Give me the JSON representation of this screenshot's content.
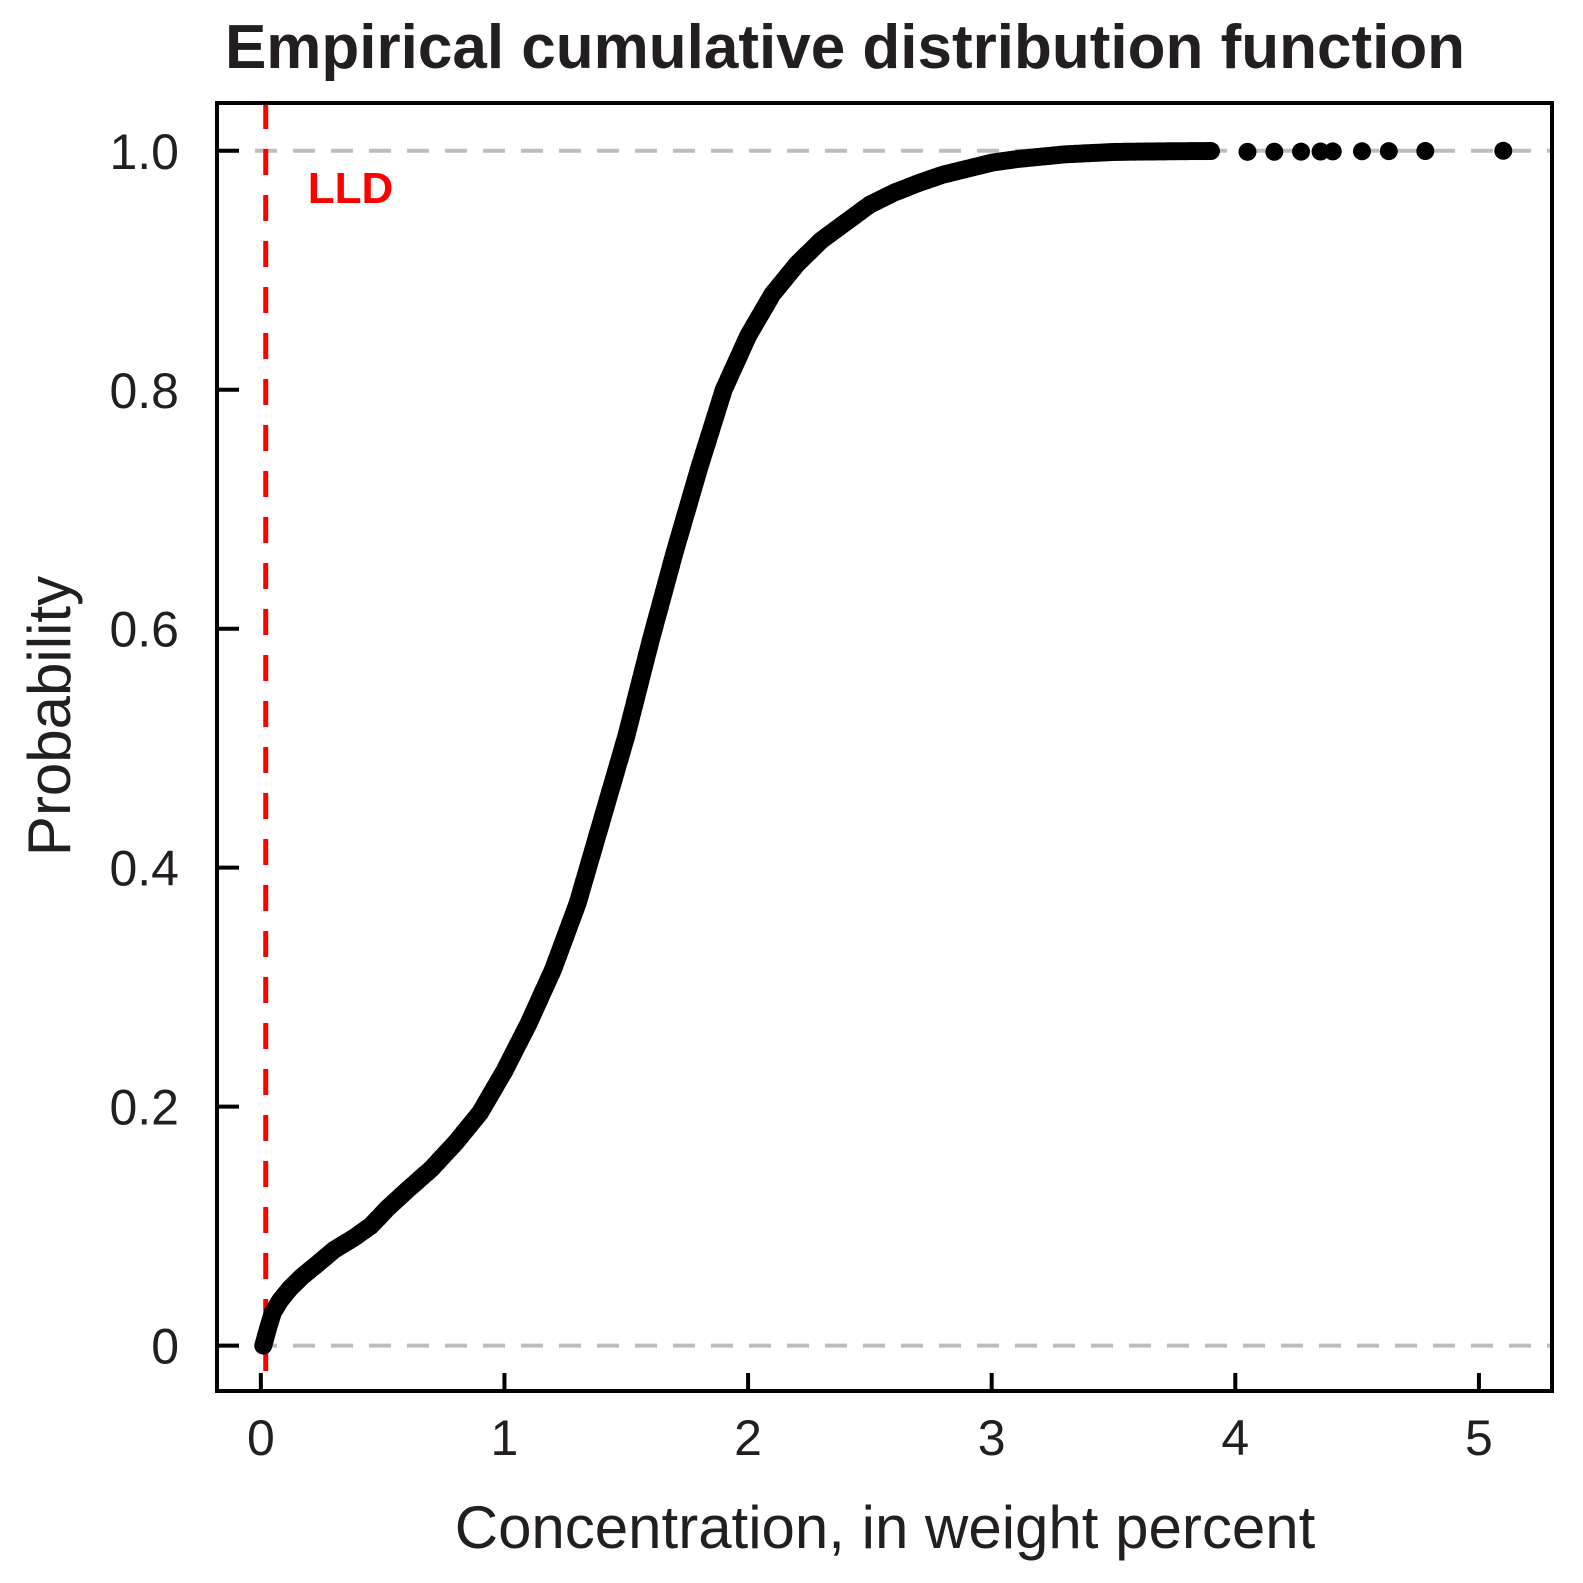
{
  "chart_data": {
    "type": "scatter",
    "title": "Empirical cumulative distribution function",
    "xlabel": "Concentration, in weight percent",
    "ylabel": "Probability",
    "xlim": [
      -0.18,
      5.3
    ],
    "ylim": [
      -0.038,
      1.04
    ],
    "x_ticks": [
      0,
      1,
      2,
      3,
      4,
      5
    ],
    "x_tick_labels": [
      "0",
      "1",
      "2",
      "3",
      "4",
      "5"
    ],
    "y_ticks": [
      0,
      0.2,
      0.4,
      0.6,
      0.8,
      1.0
    ],
    "y_tick_labels": [
      "0",
      "0.2",
      "0.4",
      "0.6",
      "0.8",
      "1.0"
    ],
    "reference_lines": {
      "horizontal": [
        0,
        1
      ],
      "horizontal_color": "#bdbdbd",
      "vertical": {
        "x": 0.02,
        "label": "LLD",
        "color": "#ff0000"
      }
    },
    "curve": {
      "x": [
        0.01,
        0.03,
        0.05,
        0.08,
        0.12,
        0.17,
        0.23,
        0.3,
        0.38,
        0.45,
        0.52,
        0.6,
        0.7,
        0.8,
        0.9,
        1.0,
        1.1,
        1.2,
        1.3,
        1.4,
        1.5,
        1.6,
        1.7,
        1.8,
        1.9,
        2.0,
        2.1,
        2.2,
        2.3,
        2.4,
        2.5,
        2.6,
        2.7,
        2.8,
        2.9,
        3.0,
        3.1,
        3.2,
        3.3,
        3.4,
        3.5,
        3.6,
        3.7,
        3.8,
        3.9
      ],
      "y": [
        0.0,
        0.015,
        0.028,
        0.038,
        0.048,
        0.058,
        0.068,
        0.08,
        0.09,
        0.1,
        0.115,
        0.13,
        0.148,
        0.17,
        0.195,
        0.23,
        0.27,
        0.315,
        0.37,
        0.44,
        0.51,
        0.59,
        0.665,
        0.735,
        0.8,
        0.845,
        0.88,
        0.905,
        0.925,
        0.94,
        0.955,
        0.965,
        0.973,
        0.98,
        0.985,
        0.99,
        0.993,
        0.995,
        0.997,
        0.998,
        0.999,
        0.9993,
        0.9995,
        0.9997,
        0.9998
      ]
    },
    "tail_points": {
      "x": [
        4.05,
        4.16,
        4.27,
        4.35,
        4.4,
        4.52,
        4.63,
        4.78,
        5.1
      ],
      "y": [
        0.9991,
        0.9992,
        0.9993,
        0.9994,
        0.9995,
        0.9996,
        0.9997,
        0.9998,
        1.0
      ]
    },
    "point_color": "#000000"
  }
}
